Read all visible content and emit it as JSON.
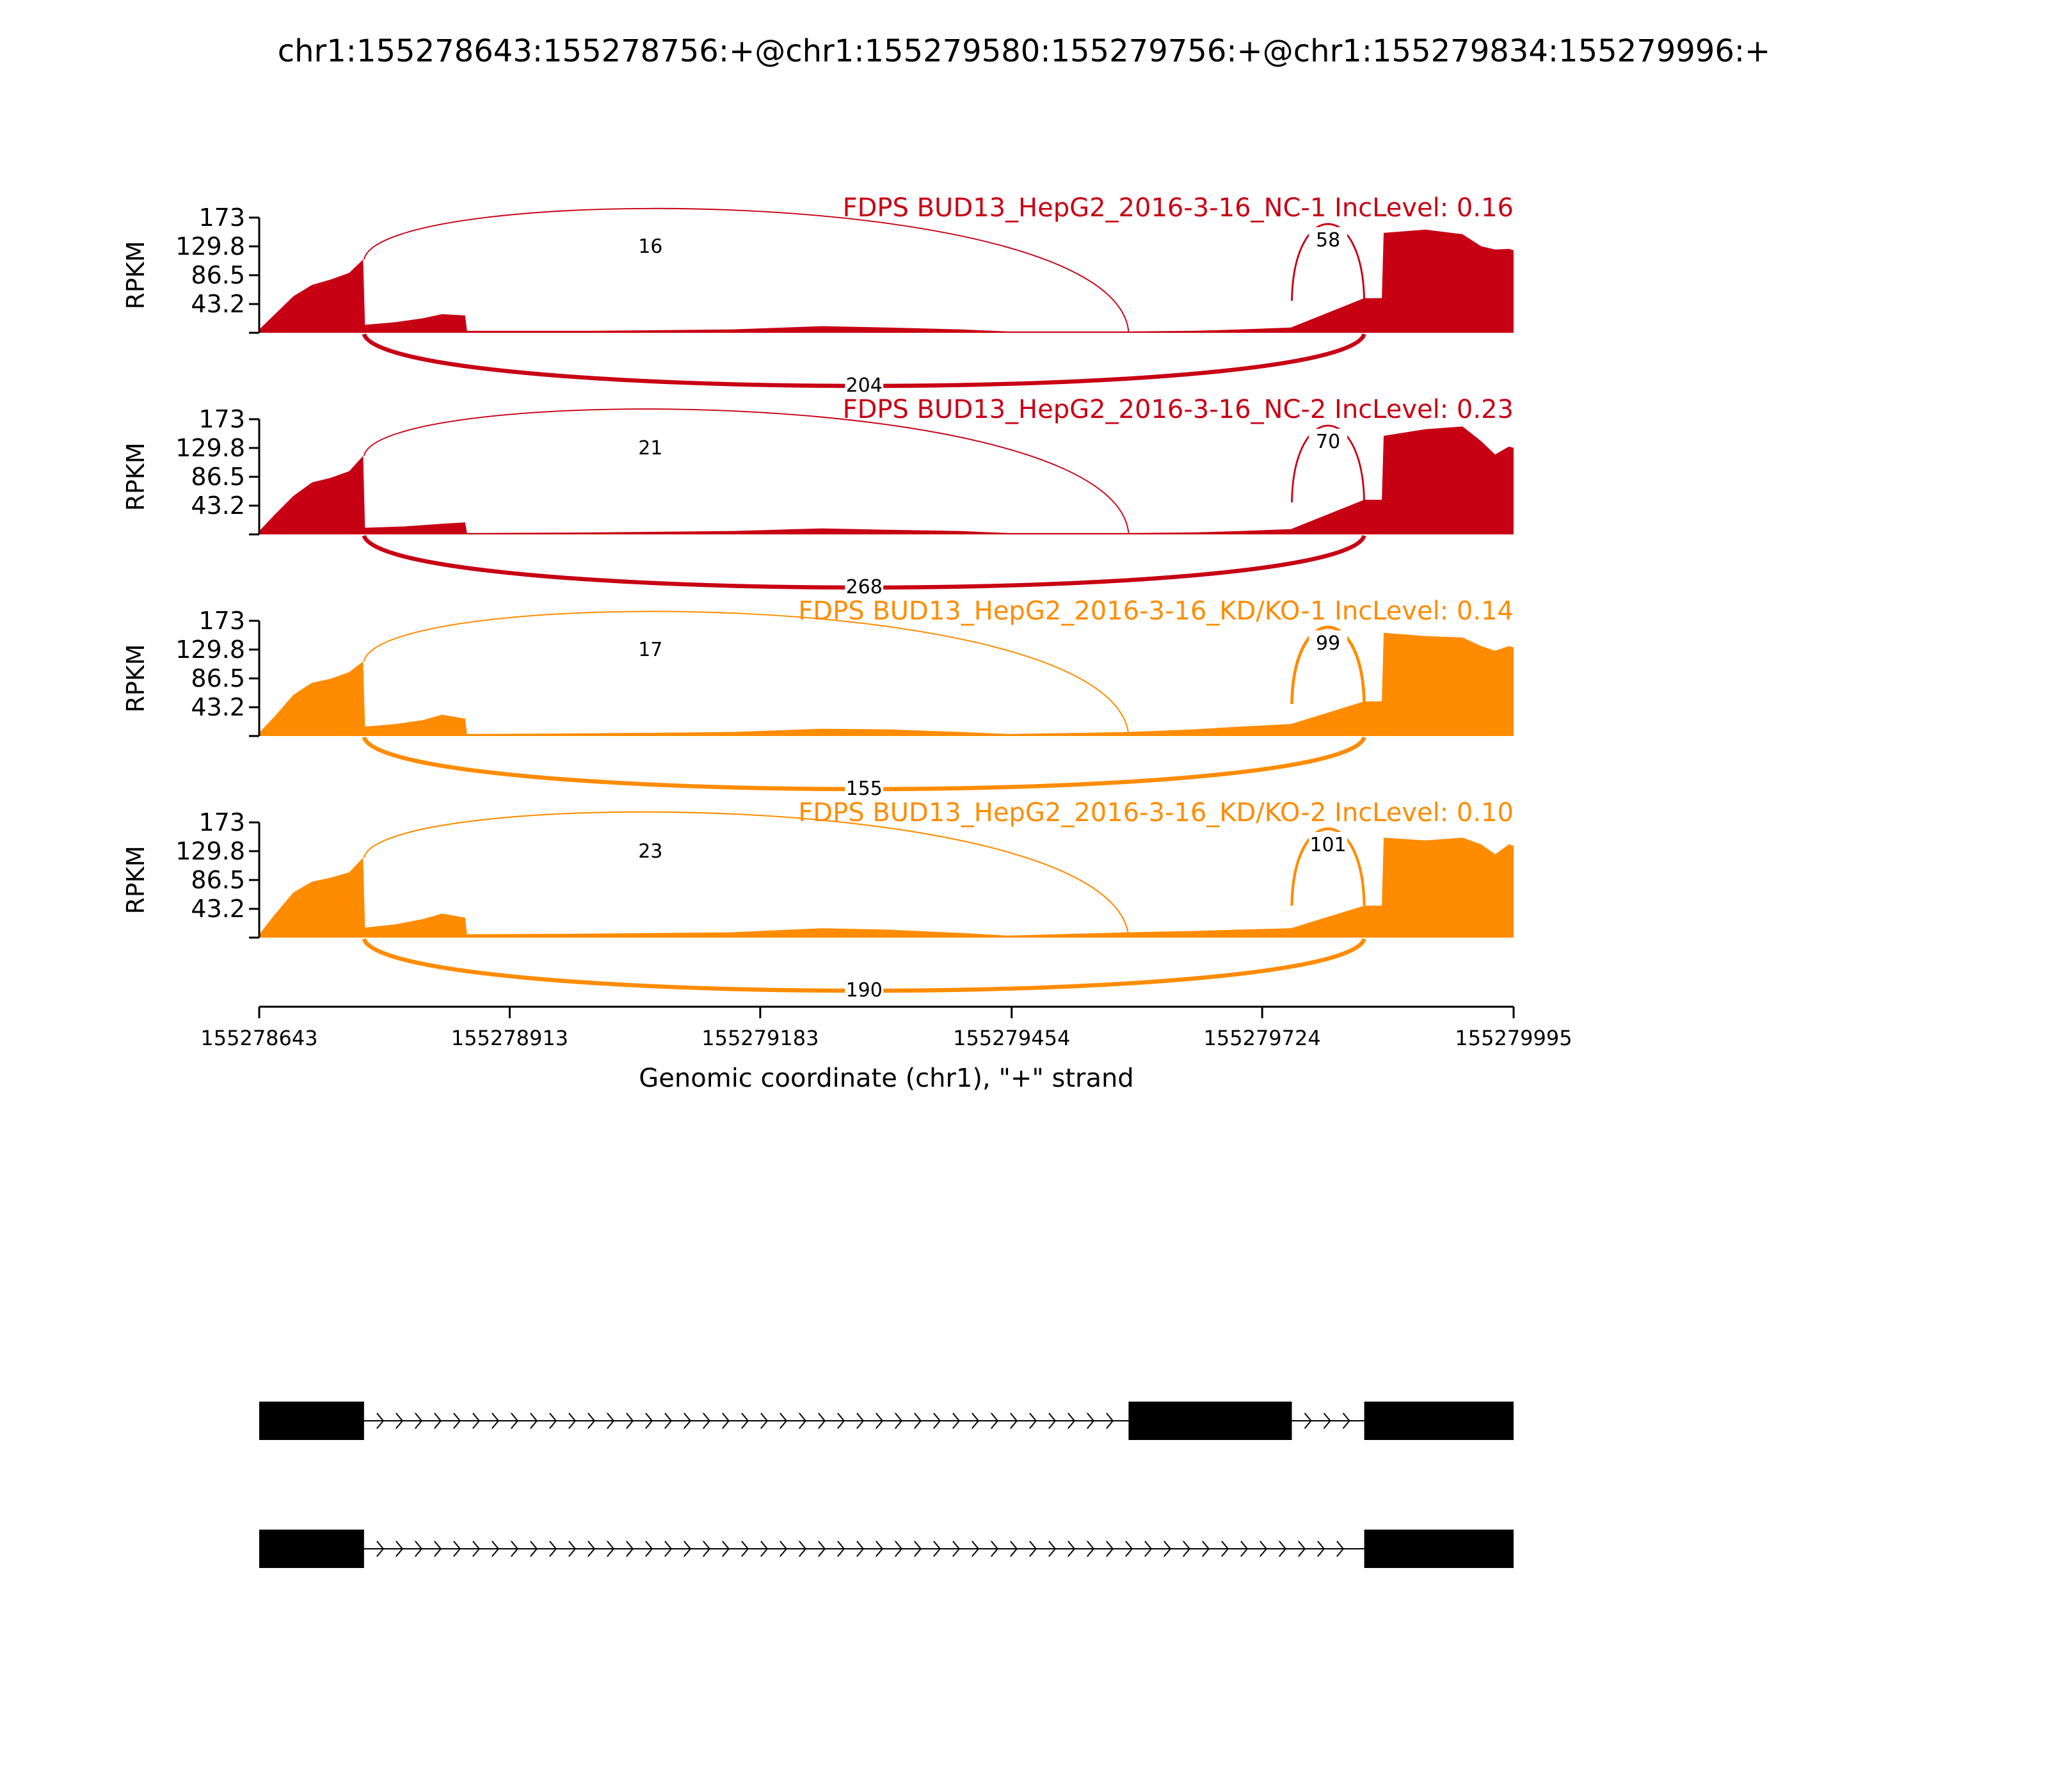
{
  "title": "chr1:155278643:155278756:+@chr1:155279580:155279756:+@chr1:155279834:155279996:+",
  "chart_data": {
    "type": "area",
    "subtype": "sashimi",
    "ylabel": "RPKM",
    "yticks": [
      "173",
      "129.8",
      "86.5",
      "43.2"
    ],
    "ylim": [
      0,
      173
    ],
    "xlabel": "Genomic coordinate (chr1), \"+\" strand",
    "xlim": [
      155278643,
      155279995
    ],
    "xticks": [
      "155278643",
      "155278913",
      "155279183",
      "155279454",
      "155279724",
      "155279995"
    ],
    "exons": [
      {
        "start": 155278643,
        "end": 155278756
      },
      {
        "start": 155279580,
        "end": 155279756
      },
      {
        "start": 155279834,
        "end": 155279996
      }
    ],
    "series": [
      {
        "name": "FDPS BUD13_HepG2_2016-3-16_NC-1 IncLevel: 0.16",
        "color": "#c80014",
        "junctions": [
          {
            "from": 155278756,
            "to": 155279580,
            "reads": "16",
            "side": "above"
          },
          {
            "from": 155279756,
            "to": 155279834,
            "reads": "58",
            "side": "above"
          },
          {
            "from": 155278756,
            "to": 155279834,
            "reads": "204",
            "side": "below"
          }
        ],
        "coverage": [
          [
            155278643,
            5
          ],
          [
            155278660,
            28
          ],
          [
            155278680,
            55
          ],
          [
            155278700,
            72
          ],
          [
            155278720,
            80
          ],
          [
            155278740,
            90
          ],
          [
            155278755,
            110
          ],
          [
            155278757,
            12
          ],
          [
            155278790,
            16
          ],
          [
            155278820,
            22
          ],
          [
            155278840,
            28
          ],
          [
            155278865,
            26
          ],
          [
            155278867,
            3
          ],
          [
            155279000,
            3
          ],
          [
            155279150,
            5
          ],
          [
            155279250,
            10
          ],
          [
            155279320,
            8
          ],
          [
            155279400,
            5
          ],
          [
            155279450,
            2
          ],
          [
            155279580,
            2
          ],
          [
            155279650,
            3
          ],
          [
            155279700,
            5
          ],
          [
            155279755,
            8
          ],
          [
            155279834,
            52
          ],
          [
            155279853,
            52
          ],
          [
            155279855,
            150
          ],
          [
            155279900,
            155
          ],
          [
            155279940,
            148
          ],
          [
            155279960,
            130
          ],
          [
            155279975,
            125
          ],
          [
            155279990,
            126
          ],
          [
            155279995,
            124
          ]
        ]
      },
      {
        "name": "FDPS BUD13_HepG2_2016-3-16_NC-2 IncLevel: 0.23",
        "color": "#c80014",
        "junctions": [
          {
            "from": 155278756,
            "to": 155279580,
            "reads": "21",
            "side": "above"
          },
          {
            "from": 155279756,
            "to": 155279834,
            "reads": "70",
            "side": "above"
          },
          {
            "from": 155278756,
            "to": 155279834,
            "reads": "268",
            "side": "below"
          }
        ],
        "coverage": [
          [
            155278643,
            5
          ],
          [
            155278660,
            30
          ],
          [
            155278680,
            58
          ],
          [
            155278700,
            78
          ],
          [
            155278720,
            85
          ],
          [
            155278740,
            95
          ],
          [
            155278755,
            118
          ],
          [
            155278757,
            10
          ],
          [
            155278800,
            12
          ],
          [
            155278840,
            16
          ],
          [
            155278865,
            18
          ],
          [
            155278867,
            2
          ],
          [
            155279000,
            3
          ],
          [
            155279150,
            5
          ],
          [
            155279250,
            9
          ],
          [
            155279320,
            7
          ],
          [
            155279400,
            5
          ],
          [
            155279450,
            2
          ],
          [
            155279580,
            2
          ],
          [
            155279650,
            3
          ],
          [
            155279700,
            5
          ],
          [
            155279755,
            8
          ],
          [
            155279834,
            52
          ],
          [
            155279853,
            52
          ],
          [
            155279855,
            148
          ],
          [
            155279900,
            158
          ],
          [
            155279940,
            162
          ],
          [
            155279960,
            140
          ],
          [
            155279975,
            120
          ],
          [
            155279990,
            132
          ],
          [
            155279995,
            130
          ]
        ]
      },
      {
        "name": "FDPS BUD13_HepG2_2016-3-16_KD/KO-1 IncLevel: 0.14",
        "color": "#ff8c00",
        "junctions": [
          {
            "from": 155278756,
            "to": 155279580,
            "reads": "17",
            "side": "above"
          },
          {
            "from": 155279756,
            "to": 155279834,
            "reads": "99",
            "side": "above"
          },
          {
            "from": 155278756,
            "to": 155279834,
            "reads": "155",
            "side": "below"
          }
        ],
        "coverage": [
          [
            155278643,
            5
          ],
          [
            155278660,
            30
          ],
          [
            155278680,
            62
          ],
          [
            155278700,
            80
          ],
          [
            155278720,
            86
          ],
          [
            155278740,
            96
          ],
          [
            155278755,
            112
          ],
          [
            155278757,
            14
          ],
          [
            155278790,
            18
          ],
          [
            155278820,
            24
          ],
          [
            155278840,
            32
          ],
          [
            155278865,
            26
          ],
          [
            155278867,
            3
          ],
          [
            155279000,
            4
          ],
          [
            155279150,
            6
          ],
          [
            155279250,
            11
          ],
          [
            155279320,
            10
          ],
          [
            155279400,
            6
          ],
          [
            155279450,
            3
          ],
          [
            155279580,
            6
          ],
          [
            155279650,
            10
          ],
          [
            155279700,
            14
          ],
          [
            155279755,
            18
          ],
          [
            155279834,
            52
          ],
          [
            155279853,
            52
          ],
          [
            155279855,
            155
          ],
          [
            155279900,
            150
          ],
          [
            155279940,
            148
          ],
          [
            155279960,
            135
          ],
          [
            155279975,
            128
          ],
          [
            155279990,
            135
          ],
          [
            155279995,
            133
          ]
        ]
      },
      {
        "name": "FDPS BUD13_HepG2_2016-3-16_KD/KO-2 IncLevel: 0.10",
        "color": "#ff8c00",
        "junctions": [
          {
            "from": 155278756,
            "to": 155279580,
            "reads": "23",
            "side": "above"
          },
          {
            "from": 155279756,
            "to": 155279834,
            "reads": "101",
            "side": "above"
          },
          {
            "from": 155278756,
            "to": 155279834,
            "reads": "190",
            "side": "below"
          }
        ],
        "coverage": [
          [
            155278643,
            5
          ],
          [
            155278660,
            35
          ],
          [
            155278680,
            68
          ],
          [
            155278700,
            84
          ],
          [
            155278720,
            90
          ],
          [
            155278740,
            98
          ],
          [
            155278755,
            120
          ],
          [
            155278757,
            15
          ],
          [
            155278790,
            20
          ],
          [
            155278820,
            28
          ],
          [
            155278840,
            36
          ],
          [
            155278865,
            30
          ],
          [
            155278867,
            5
          ],
          [
            155279000,
            6
          ],
          [
            155279150,
            8
          ],
          [
            155279250,
            14
          ],
          [
            155279320,
            12
          ],
          [
            155279400,
            7
          ],
          [
            155279450,
            3
          ],
          [
            155279580,
            8
          ],
          [
            155279650,
            10
          ],
          [
            155279700,
            12
          ],
          [
            155279755,
            14
          ],
          [
            155279834,
            48
          ],
          [
            155279853,
            48
          ],
          [
            155279855,
            150
          ],
          [
            155279900,
            146
          ],
          [
            155279940,
            150
          ],
          [
            155279960,
            140
          ],
          [
            155279975,
            125
          ],
          [
            155279990,
            140
          ],
          [
            155279995,
            138
          ]
        ]
      }
    ],
    "isoforms": [
      {
        "exons": [
          [
            155278643,
            155278756
          ],
          [
            155279580,
            155279756
          ],
          [
            155279834,
            155279996
          ]
        ]
      },
      {
        "exons": [
          [
            155278643,
            155278756
          ],
          [
            155279834,
            155279996
          ]
        ]
      }
    ]
  }
}
